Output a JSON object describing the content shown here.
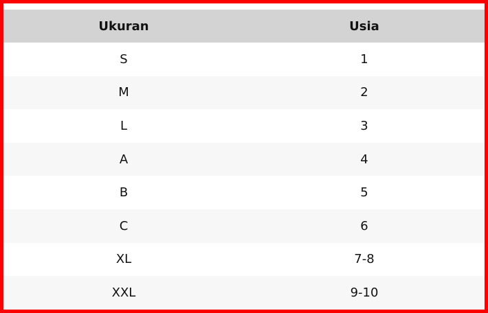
{
  "table": {
    "header": [
      "Ukuran",
      "Usia"
    ],
    "rows": [
      [
        "S",
        "1"
      ],
      [
        "M",
        "2"
      ],
      [
        "L",
        "3"
      ],
      [
        "A",
        "4"
      ],
      [
        "B",
        "5"
      ],
      [
        "C",
        "6"
      ],
      [
        "XL",
        "7-8"
      ],
      [
        "XXL",
        "9-10"
      ]
    ]
  }
}
